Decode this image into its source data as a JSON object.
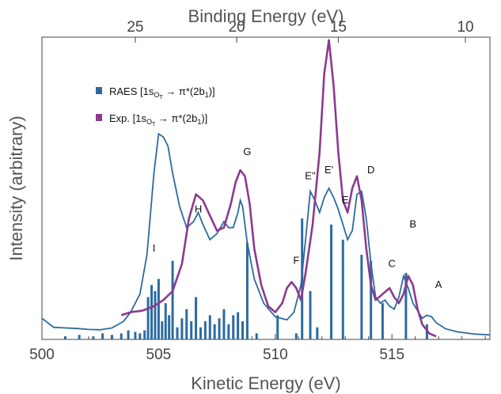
{
  "chart_data": {
    "type": "line",
    "xlabel": "Kinetic Energy (eV)",
    "x2label": "Binding Energy (eV)",
    "ylabel": "Intensity (arbitrary)",
    "xlim": [
      500,
      519.2
    ],
    "ylim": [
      0,
      1.0
    ],
    "x_ticks": [
      "500",
      "505",
      "510",
      "515"
    ],
    "x2_ticks": [
      {
        "label": "25",
        "ke": 504.0
      },
      {
        "label": "20",
        "ke": 508.35
      },
      {
        "label": "15",
        "ke": 512.7
      },
      {
        "label": "10",
        "ke": 518.15
      }
    ],
    "legend": [
      {
        "label": "RAES [1s",
        "sub": "O",
        "subsub": "T",
        "rest": " → π*(2b",
        "rest_sub": "1",
        "end": ")]",
        "color": "#2c6ba0"
      },
      {
        "label": "Exp. [1s",
        "sub": "O",
        "subsub": "T",
        "rest": " → π*(2b",
        "rest_sub": "1",
        "end": ")]",
        "color": "#8b3a8f"
      }
    ],
    "grid": false,
    "legend_position": "top-left",
    "series": [
      {
        "name": "RAES [1sOT → π*(2b1)]",
        "kind": "envelope",
        "color": "#2c6ba0",
        "x": [
          500,
          500.5,
          501,
          501.5,
          502,
          502.5,
          503,
          503.5,
          503.8,
          504.2,
          504.5,
          504.8,
          505.0,
          505.2,
          505.4,
          505.6,
          505.9,
          506.2,
          506.5,
          506.7,
          506.9,
          507.2,
          507.5,
          507.8,
          508.0,
          508.2,
          508.4,
          508.5,
          508.6,
          508.8,
          509.1,
          509.5,
          510.0,
          510.5,
          510.8,
          511.1,
          511.3,
          511.5,
          511.7,
          511.9,
          512.1,
          512.3,
          512.5,
          512.7,
          512.9,
          513.1,
          513.3,
          513.5,
          513.7,
          513.9,
          514.1,
          514.3,
          514.5,
          514.7,
          514.9,
          515.1,
          515.3,
          515.5,
          515.7,
          515.9,
          516.1,
          516.3,
          516.5,
          516.7,
          516.9,
          517.3,
          517.8,
          518.5,
          519.2
        ],
        "y": [
          0.07,
          0.04,
          0.038,
          0.036,
          0.033,
          0.032,
          0.038,
          0.06,
          0.09,
          0.15,
          0.28,
          0.55,
          0.68,
          0.67,
          0.64,
          0.55,
          0.44,
          0.37,
          0.39,
          0.42,
          0.38,
          0.33,
          0.35,
          0.39,
          0.37,
          0.37,
          0.42,
          0.46,
          0.44,
          0.32,
          0.2,
          0.12,
          0.075,
          0.065,
          0.09,
          0.18,
          0.33,
          0.49,
          0.46,
          0.42,
          0.47,
          0.5,
          0.47,
          0.43,
          0.38,
          0.33,
          0.36,
          0.48,
          0.49,
          0.4,
          0.25,
          0.14,
          0.12,
          0.13,
          0.11,
          0.1,
          0.14,
          0.21,
          0.17,
          0.12,
          0.095,
          0.07,
          0.08,
          0.075,
          0.055,
          0.035,
          0.025,
          0.018,
          0.015
        ]
      },
      {
        "name": "Exp. [1sOT → π*(2b1)]",
        "kind": "line",
        "color": "#8b3a8f",
        "x": [
          503.4,
          503.8,
          504.3,
          504.8,
          505.2,
          505.6,
          506.0,
          506.3,
          506.6,
          506.9,
          507.2,
          507.5,
          507.8,
          508.1,
          508.3,
          508.5,
          508.7,
          508.9,
          509.1,
          509.4,
          509.7,
          510.0,
          510.3,
          510.5,
          510.7,
          510.9,
          511.1,
          511.3,
          511.6,
          511.9,
          512.1,
          512.3,
          512.5,
          512.7,
          512.9,
          513.1,
          513.3,
          513.5,
          513.7,
          513.9,
          514.1,
          514.3,
          514.6,
          514.9,
          515.1,
          515.3,
          515.5,
          515.7,
          515.9,
          516.1,
          516.3,
          516.6,
          516.9
        ],
        "y": [
          0.08,
          0.09,
          0.095,
          0.11,
          0.13,
          0.16,
          0.25,
          0.4,
          0.48,
          0.46,
          0.41,
          0.36,
          0.37,
          0.45,
          0.52,
          0.56,
          0.54,
          0.45,
          0.3,
          0.18,
          0.11,
          0.09,
          0.12,
          0.17,
          0.19,
          0.17,
          0.13,
          0.22,
          0.38,
          0.62,
          0.88,
          0.99,
          0.84,
          0.62,
          0.46,
          0.42,
          0.5,
          0.54,
          0.46,
          0.3,
          0.18,
          0.13,
          0.15,
          0.17,
          0.14,
          0.12,
          0.15,
          0.21,
          0.18,
          0.1,
          0.05,
          0.02,
          0.01
        ]
      },
      {
        "name": "RAES sticks",
        "kind": "stick",
        "color": "#2c6ba0",
        "x": [
          501.0,
          501.6,
          502.2,
          502.6,
          503.0,
          503.4,
          503.7,
          504.0,
          504.2,
          504.4,
          504.55,
          504.7,
          504.85,
          505.0,
          505.15,
          505.3,
          505.45,
          505.6,
          505.8,
          506.0,
          506.2,
          506.4,
          506.6,
          506.8,
          507.0,
          507.2,
          507.4,
          507.6,
          507.8,
          508.0,
          508.2,
          508.4,
          508.6,
          508.8,
          509.2,
          510.1,
          510.9,
          511.15,
          511.5,
          511.8,
          512.4,
          512.9,
          513.7,
          514.1,
          514.6,
          515.6,
          516.5
        ],
        "y": [
          0.01,
          0.015,
          0.01,
          0.02,
          0.015,
          0.02,
          0.03,
          0.025,
          0.02,
          0.03,
          0.14,
          0.18,
          0.16,
          0.2,
          0.06,
          0.12,
          0.08,
          0.26,
          0.04,
          0.07,
          0.1,
          0.06,
          0.14,
          0.04,
          0.06,
          0.08,
          0.05,
          0.07,
          0.1,
          0.05,
          0.08,
          0.09,
          0.06,
          0.32,
          0.02,
          0.08,
          0.02,
          0.4,
          0.16,
          0.04,
          0.38,
          0.33,
          0.28,
          0.26,
          0.12,
          0.22,
          0.05
        ]
      }
    ],
    "annotations": [
      {
        "text": "I",
        "x": 504.8,
        "y": 0.29
      },
      {
        "text": "H",
        "x": 506.7,
        "y": 0.42
      },
      {
        "text": "G",
        "x": 508.8,
        "y": 0.61
      },
      {
        "text": "F",
        "x": 510.9,
        "y": 0.25
      },
      {
        "text": "E''",
        "x": 511.5,
        "y": 0.53
      },
      {
        "text": "E'",
        "x": 512.3,
        "y": 0.55
      },
      {
        "text": "E",
        "x": 513.0,
        "y": 0.45
      },
      {
        "text": "D",
        "x": 514.1,
        "y": 0.55
      },
      {
        "text": "C",
        "x": 515.0,
        "y": 0.24
      },
      {
        "text": "B",
        "x": 515.9,
        "y": 0.37
      },
      {
        "text": "A",
        "x": 517.0,
        "y": 0.17
      }
    ]
  }
}
